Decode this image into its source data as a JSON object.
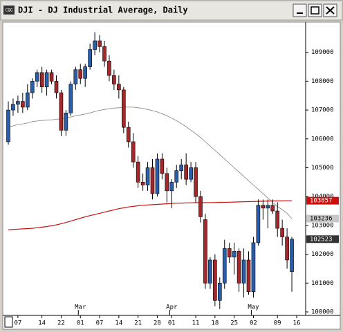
{
  "chart_data": {
    "type": "candlestick",
    "title": "DJI - DJ Industrial Average, Daily",
    "categories": [
      null,
      null,
      "07",
      null,
      null,
      null,
      null,
      "14",
      null,
      null,
      null,
      "22",
      null,
      null,
      null,
      "01",
      null,
      null,
      null,
      "07",
      null,
      null,
      null,
      "14",
      null,
      null,
      null,
      "21",
      null,
      null,
      null,
      "28",
      null,
      null,
      "01",
      null,
      null,
      null,
      null,
      "11",
      null,
      null,
      null,
      "18",
      null,
      null,
      null,
      "25",
      null,
      null,
      null,
      "02",
      null,
      null,
      null,
      null,
      "09",
      null,
      null,
      null,
      "16"
    ],
    "month_categories": [
      null,
      null,
      null,
      null,
      null,
      null,
      null,
      null,
      null,
      null,
      null,
      null,
      null,
      null,
      null,
      "Mar",
      null,
      null,
      null,
      null,
      null,
      null,
      null,
      null,
      null,
      null,
      null,
      null,
      null,
      null,
      null,
      null,
      null,
      null,
      "Apr",
      null,
      null,
      null,
      null,
      null,
      null,
      null,
      null,
      null,
      null,
      null,
      null,
      null,
      null,
      null,
      null,
      "May",
      null,
      null,
      null,
      null,
      null,
      null,
      null,
      null,
      null
    ],
    "open": [
      105900,
      107000,
      107200,
      107300,
      107100,
      107600,
      108000,
      108300,
      107800,
      108300,
      108000,
      107600,
      106300,
      106900,
      107900,
      108400,
      108100,
      108500,
      109100,
      109400,
      109200,
      108700,
      108200,
      107900,
      107700,
      106400,
      105900,
      105200,
      104500,
      104400,
      105000,
      104100,
      105300,
      104800,
      104200,
      104500,
      104900,
      105100,
      104600,
      105000,
      104000,
      103200,
      101000,
      101800,
      100400,
      101000,
      102200,
      101900,
      102100,
      101000,
      101800,
      100700,
      102400,
      103700,
      103600,
      103700,
      103500,
      102900,
      102600,
      101400,
      null
    ],
    "high": [
      107300,
      107400,
      107500,
      107600,
      107900,
      108100,
      108400,
      108500,
      108400,
      108400,
      108200,
      107700,
      107000,
      108000,
      108500,
      108600,
      108600,
      109300,
      109700,
      109600,
      109400,
      108900,
      108400,
      108200,
      107800,
      106600,
      106200,
      105400,
      104800,
      105200,
      105300,
      105500,
      105500,
      105000,
      104600,
      105100,
      105300,
      105500,
      105200,
      105200,
      104200,
      103400,
      101900,
      102000,
      101200,
      102500,
      102400,
      102400,
      102200,
      102200,
      102100,
      102600,
      103900,
      103900,
      103900,
      103900,
      103800,
      103200,
      102900,
      102600,
      null
    ],
    "low": [
      105800,
      106800,
      106900,
      106900,
      107000,
      107400,
      107800,
      107600,
      107500,
      107900,
      107400,
      106100,
      106100,
      106800,
      107700,
      107900,
      107800,
      108400,
      108900,
      109000,
      108500,
      108000,
      107700,
      107400,
      106200,
      105700,
      105000,
      104300,
      104200,
      104200,
      103900,
      104000,
      104600,
      103800,
      103600,
      104300,
      104600,
      104400,
      104500,
      103800,
      103100,
      100800,
      100800,
      100200,
      100100,
      100800,
      101700,
      101300,
      100700,
      100500,
      100600,
      100500,
      102300,
      103200,
      102900,
      103400,
      102600,
      102300,
      101500,
      100700,
      null
    ],
    "close": [
      107000,
      107200,
      107300,
      107100,
      107600,
      108000,
      108300,
      107800,
      108300,
      108000,
      107600,
      106300,
      106900,
      107900,
      108400,
      108100,
      108500,
      109100,
      109400,
      109200,
      108700,
      108200,
      107900,
      107700,
      106400,
      105900,
      105200,
      104500,
      104400,
      105000,
      104100,
      105300,
      104800,
      104200,
      104500,
      104900,
      105100,
      104600,
      105000,
      104000,
      103300,
      101000,
      101800,
      100400,
      101000,
      102200,
      101900,
      102100,
      101000,
      101800,
      100700,
      102400,
      103700,
      103600,
      103700,
      103500,
      102900,
      102600,
      101800,
      102523,
      null
    ],
    "up_color": "#2b5ea8",
    "down_color": "#a3282b",
    "series": [
      {
        "color": "#808080",
        "values": [
          106400,
          106450,
          106500,
          106520,
          106550,
          106600,
          106620,
          106640,
          106650,
          106660,
          106680,
          106700,
          106720,
          106760,
          106800,
          106830,
          106860,
          106900,
          106950,
          106990,
          107020,
          107050,
          107070,
          107080,
          107100,
          107100,
          107100,
          107080,
          107060,
          107020,
          106980,
          106930,
          106870,
          106800,
          106720,
          106630,
          106530,
          106420,
          106300,
          106180,
          106050,
          105900,
          105750,
          105600,
          105450,
          105300,
          105150,
          105000,
          104850,
          104700,
          104550,
          104400,
          104250,
          104100,
          103950,
          103800,
          103650,
          103550,
          103420,
          103236,
          null
        ]
      },
      {
        "color": "#cc1010",
        "values": [
          102850,
          102860,
          102870,
          102880,
          102890,
          102900,
          102920,
          102940,
          102960,
          102990,
          103020,
          103060,
          103100,
          103150,
          103200,
          103250,
          103300,
          103340,
          103380,
          103420,
          103460,
          103500,
          103540,
          103580,
          103610,
          103640,
          103660,
          103680,
          103700,
          103710,
          103720,
          103730,
          103740,
          103750,
          103760,
          103770,
          103775,
          103780,
          103785,
          103790,
          103790,
          103790,
          103790,
          103795,
          103800,
          103800,
          103805,
          103810,
          103815,
          103820,
          103825,
          103830,
          103835,
          103840,
          103845,
          103848,
          103850,
          103853,
          103855,
          103857,
          null
        ]
      }
    ],
    "ylim": [
      99880,
      110000
    ],
    "yticks": [
      100000,
      101000,
      102000,
      103000,
      104000,
      105000,
      106000,
      107000,
      108000,
      109000
    ]
  }
}
